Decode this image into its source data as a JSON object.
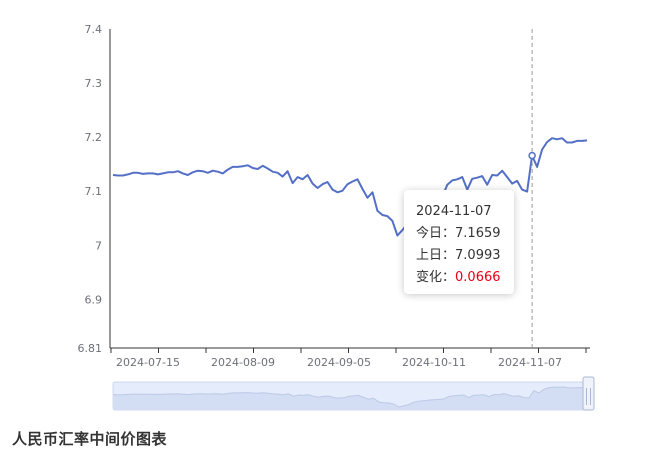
{
  "chart_data": {
    "type": "line",
    "y_ticks": [
      "7.4",
      "7.3",
      "7.2",
      "7.1",
      "7",
      "6.9",
      "6.81"
    ],
    "x_ticks": [
      "2024-07-15",
      "2024-08-09",
      "2024-09-05",
      "2024-10-11",
      "2024-11-07"
    ],
    "ylim": [
      6.81,
      7.4
    ],
    "series": [
      {
        "values": [
          7.13,
          7.129,
          7.129,
          7.131,
          7.134,
          7.134,
          7.132,
          7.133,
          7.133,
          7.131,
          7.133,
          7.135,
          7.135,
          7.137,
          7.133,
          7.13,
          7.135,
          7.138,
          7.137,
          7.134,
          7.138,
          7.136,
          7.133,
          7.14,
          7.145,
          7.145,
          7.146,
          7.148,
          7.143,
          7.141,
          7.147,
          7.142,
          7.136,
          7.134,
          7.127,
          7.137,
          7.115,
          7.126,
          7.122,
          7.13,
          7.114,
          7.106,
          7.113,
          7.117,
          7.103,
          7.098,
          7.101,
          7.113,
          7.118,
          7.122,
          7.104,
          7.088,
          7.098,
          7.064,
          7.056,
          7.054,
          7.045,
          7.018,
          7.028,
          7.04,
          7.06,
          7.07,
          7.075,
          7.08,
          7.083,
          7.086,
          7.09,
          7.112,
          7.12,
          7.122,
          7.126,
          7.103,
          7.123,
          7.125,
          7.128,
          7.112,
          7.13,
          7.129,
          7.138,
          7.126,
          7.114,
          7.119,
          7.103,
          7.0993,
          7.1659,
          7.145,
          7.177,
          7.191,
          7.198,
          7.196,
          7.198,
          7.19,
          7.19,
          7.193,
          7.193,
          7.194
        ]
      }
    ],
    "highlight_index": 84
  },
  "tooltip": {
    "date": "2024-11-07",
    "today_label": "今日：",
    "today_value": "7.1659",
    "prev_label": "上日：",
    "prev_value": "7.0993",
    "change_label": "变化：",
    "change_value": "0.0666"
  },
  "caption": "人民币汇率中间价图表"
}
